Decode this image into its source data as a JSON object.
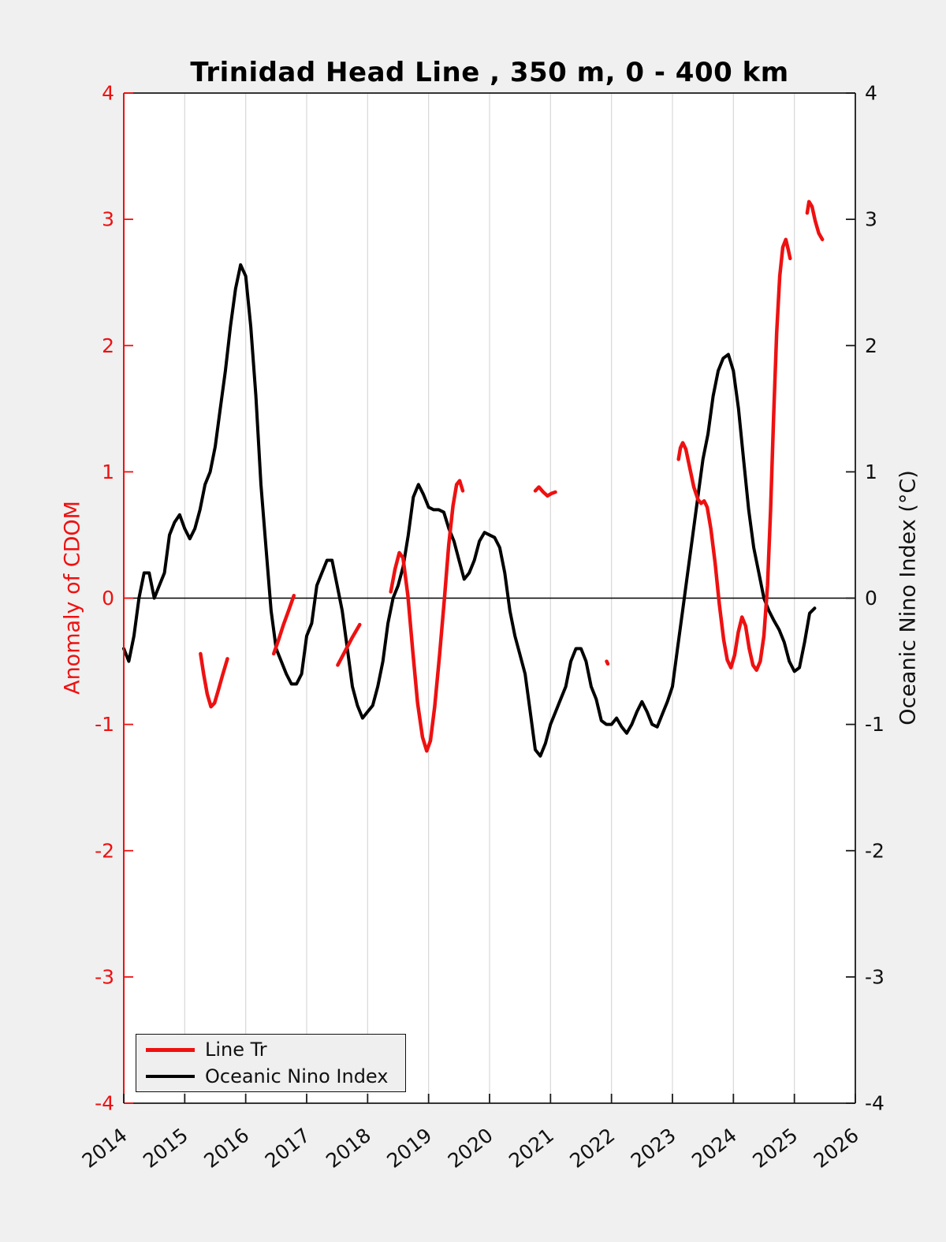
{
  "title": "Trinidad Head Line , 350 m, 0 - 400 km",
  "left_axis": {
    "label": "Anomaly of CDOM",
    "color": "#ee1111",
    "tick_labels": [
      "4",
      "3",
      "2",
      "1",
      "0",
      "-1",
      "-2",
      "-3",
      "-4"
    ]
  },
  "right_axis": {
    "label": "Oceanic Nino Index (°C)",
    "color": "#000000",
    "tick_labels": [
      "4",
      "3",
      "2",
      "1",
      "0",
      "-1",
      "-2",
      "-3",
      "-4"
    ]
  },
  "x_axis": {
    "tick_labels": [
      "2014",
      "2015",
      "2016",
      "2017",
      "2018",
      "2019",
      "2020",
      "2021",
      "2022",
      "2023",
      "2024",
      "2025",
      "2026"
    ]
  },
  "legend": {
    "entries": [
      {
        "label": "Line Tr",
        "color": "#ee1111"
      },
      {
        "label": "Oceanic Nino Index",
        "color": "#000000"
      }
    ]
  },
  "colors": {
    "figure_background": "#f0f0f0",
    "plot_background": "#ffffff",
    "gridline": "#d8d8d8",
    "zero_line": "#000000",
    "red_series": "#ee1111",
    "black_series": "#000000",
    "spine": "#1a1a1a"
  },
  "chart_data": {
    "type": "line",
    "title": "Trinidad Head Line , 350 m, 0 - 400 km",
    "xlabel": "",
    "ylabel_left": "Anomaly of CDOM",
    "ylabel_right": "Oceanic Nino Index (°C)",
    "xlim": [
      2014,
      2026
    ],
    "ylim": [
      -4,
      4
    ],
    "x_ticks": [
      2014,
      2015,
      2016,
      2017,
      2018,
      2019,
      2020,
      2021,
      2022,
      2023,
      2024,
      2025,
      2026
    ],
    "y_ticks": [
      4,
      3,
      2,
      1,
      0,
      -1,
      -2,
      -3,
      -4
    ],
    "grid": "vertical-only",
    "zero_line": true,
    "legend_position": "lower-left",
    "series": [
      {
        "name": "Oceanic Nino Index",
        "axis": "right",
        "color": "#000000",
        "x_start": 2014.0,
        "x_step_months": 1,
        "values": [
          -0.4,
          -0.5,
          -0.3,
          0.0,
          0.2,
          0.2,
          0.0,
          0.1,
          0.2,
          0.5,
          0.6,
          0.66,
          0.55,
          0.47,
          0.55,
          0.7,
          0.9,
          1.0,
          1.2,
          1.5,
          1.8,
          2.15,
          2.45,
          2.64,
          2.55,
          2.15,
          1.6,
          0.9,
          0.4,
          -0.1,
          -0.4,
          -0.5,
          -0.6,
          -0.68,
          -0.68,
          -0.6,
          -0.3,
          -0.2,
          0.1,
          0.2,
          0.3,
          0.3,
          0.1,
          -0.1,
          -0.4,
          -0.7,
          -0.85,
          -0.95,
          -0.9,
          -0.85,
          -0.7,
          -0.5,
          -0.2,
          0.0,
          0.1,
          0.25,
          0.5,
          0.8,
          0.9,
          0.82,
          0.72,
          0.7,
          0.7,
          0.68,
          0.55,
          0.45,
          0.3,
          0.15,
          0.2,
          0.3,
          0.45,
          0.52,
          0.5,
          0.48,
          0.4,
          0.2,
          -0.1,
          -0.3,
          -0.45,
          -0.6,
          -0.9,
          -1.2,
          -1.25,
          -1.15,
          -1.0,
          -0.9,
          -0.8,
          -0.7,
          -0.5,
          -0.4,
          -0.4,
          -0.5,
          -0.7,
          -0.8,
          -0.97,
          -1.0,
          -1.0,
          -0.95,
          -1.02,
          -1.07,
          -1.0,
          -0.9,
          -0.82,
          -0.9,
          -1.0,
          -1.02,
          -0.92,
          -0.82,
          -0.7,
          -0.4,
          -0.1,
          0.2,
          0.5,
          0.8,
          1.1,
          1.3,
          1.6,
          1.8,
          1.9,
          1.93,
          1.8,
          1.5,
          1.1,
          0.7,
          0.4,
          0.2,
          0.0,
          -0.1,
          -0.18,
          -0.25,
          -0.35,
          -0.5,
          -0.58,
          -0.55,
          -0.35,
          -0.12,
          -0.08
        ]
      },
      {
        "name": "Line Tr",
        "axis": "left",
        "color": "#ee1111",
        "segments": [
          [
            [
              2015.26,
              -0.44
            ],
            [
              2015.31,
              -0.6
            ],
            [
              2015.37,
              -0.76
            ],
            [
              2015.43,
              -0.86
            ],
            [
              2015.49,
              -0.83
            ],
            [
              2015.55,
              -0.73
            ],
            [
              2015.62,
              -0.61
            ],
            [
              2015.7,
              -0.48
            ]
          ],
          [
            [
              2016.46,
              -0.44
            ],
            [
              2016.54,
              -0.33
            ],
            [
              2016.62,
              -0.21
            ],
            [
              2016.71,
              -0.09
            ],
            [
              2016.79,
              0.02
            ]
          ],
          [
            [
              2017.51,
              -0.53
            ],
            [
              2017.63,
              -0.42
            ],
            [
              2017.75,
              -0.31
            ],
            [
              2017.87,
              -0.21
            ]
          ],
          [
            [
              2018.38,
              0.05
            ],
            [
              2018.45,
              0.23
            ],
            [
              2018.52,
              0.36
            ],
            [
              2018.58,
              0.32
            ],
            [
              2018.66,
              0.02
            ],
            [
              2018.74,
              -0.42
            ],
            [
              2018.82,
              -0.83
            ],
            [
              2018.9,
              -1.1
            ],
            [
              2018.97,
              -1.21
            ],
            [
              2019.03,
              -1.13
            ],
            [
              2019.1,
              -0.86
            ],
            [
              2019.18,
              -0.45
            ],
            [
              2019.26,
              0.0
            ],
            [
              2019.33,
              0.42
            ],
            [
              2019.4,
              0.73
            ],
            [
              2019.46,
              0.9
            ],
            [
              2019.51,
              0.93
            ],
            [
              2019.56,
              0.85
            ]
          ],
          [
            [
              2020.75,
              0.85
            ],
            [
              2020.81,
              0.88
            ],
            [
              2020.88,
              0.84
            ],
            [
              2020.95,
              0.81
            ],
            [
              2021.02,
              0.83
            ],
            [
              2021.08,
              0.84
            ]
          ],
          [
            [
              2021.92,
              -0.5
            ],
            [
              2021.94,
              -0.52
            ]
          ],
          [
            [
              2023.1,
              1.1
            ],
            [
              2023.13,
              1.19
            ],
            [
              2023.17,
              1.23
            ],
            [
              2023.22,
              1.18
            ],
            [
              2023.28,
              1.04
            ],
            [
              2023.35,
              0.88
            ],
            [
              2023.42,
              0.78
            ],
            [
              2023.47,
              0.75
            ],
            [
              2023.52,
              0.77
            ],
            [
              2023.57,
              0.72
            ],
            [
              2023.63,
              0.55
            ],
            [
              2023.7,
              0.28
            ],
            [
              2023.77,
              -0.05
            ],
            [
              2023.84,
              -0.33
            ],
            [
              2023.9,
              -0.49
            ],
            [
              2023.96,
              -0.55
            ],
            [
              2024.02,
              -0.45
            ],
            [
              2024.08,
              -0.27
            ],
            [
              2024.14,
              -0.15
            ],
            [
              2024.2,
              -0.22
            ],
            [
              2024.26,
              -0.4
            ],
            [
              2024.32,
              -0.53
            ],
            [
              2024.38,
              -0.57
            ],
            [
              2024.44,
              -0.5
            ],
            [
              2024.5,
              -0.3
            ],
            [
              2024.56,
              0.1
            ],
            [
              2024.61,
              0.7
            ],
            [
              2024.66,
              1.45
            ],
            [
              2024.71,
              2.1
            ],
            [
              2024.76,
              2.55
            ],
            [
              2024.81,
              2.78
            ],
            [
              2024.86,
              2.84
            ],
            [
              2024.9,
              2.76
            ],
            [
              2024.93,
              2.69
            ]
          ],
          [
            [
              2025.21,
              3.05
            ],
            [
              2025.24,
              3.14
            ],
            [
              2025.29,
              3.1
            ],
            [
              2025.34,
              2.99
            ],
            [
              2025.4,
              2.89
            ],
            [
              2025.46,
              2.84
            ]
          ]
        ]
      }
    ]
  }
}
